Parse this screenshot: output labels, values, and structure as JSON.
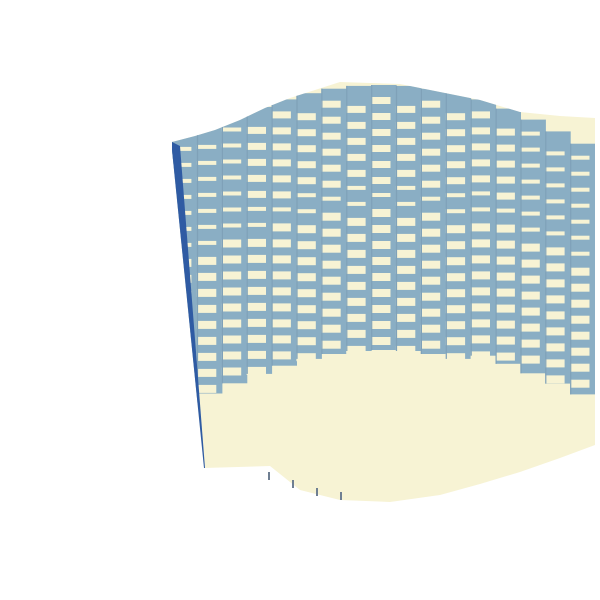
{
  "scene": {
    "kind": "voxel-surface-3d",
    "grid_columns": 17,
    "grid_rows": 30,
    "colors": {
      "background": "#ffffff",
      "top_face": "#f7f3d4",
      "front_face": "#8aaec4",
      "side_face": "#2f5ba3",
      "dark_edge": "#264e8f"
    }
  }
}
